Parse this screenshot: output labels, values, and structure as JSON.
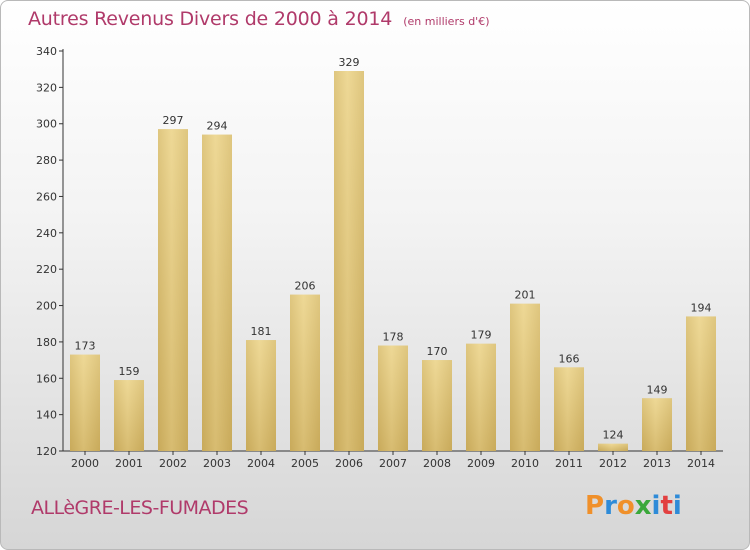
{
  "chart_data": {
    "type": "bar",
    "title": "Autres Revenus Divers de 2000 à 2014",
    "subtitle": "(en milliers d'€)",
    "categories": [
      "2000",
      "2001",
      "2002",
      "2003",
      "2004",
      "2005",
      "2006",
      "2007",
      "2008",
      "2009",
      "2010",
      "2011",
      "2012",
      "2013",
      "2014"
    ],
    "values": [
      173,
      159,
      297,
      294,
      181,
      206,
      329,
      178,
      170,
      179,
      201,
      166,
      124,
      149,
      194
    ],
    "ylim": [
      120,
      340
    ],
    "yticks": [
      120,
      140,
      160,
      180,
      200,
      220,
      240,
      260,
      280,
      300,
      320,
      340
    ],
    "grid": false,
    "bar_color": "#e8cf86",
    "bar_color_dark": "#c9aa58"
  },
  "footer": {
    "commune": "ALLèGRE-LES-FUMADES",
    "logo_letters": [
      "P",
      "r",
      "o",
      "x",
      "i",
      "t",
      "i"
    ],
    "logo_colors": [
      "#f0902a",
      "#2e8bd8",
      "#f0902a",
      "#3aa83a",
      "#2e8bd8",
      "#e24040",
      "#2e8bd8"
    ]
  }
}
